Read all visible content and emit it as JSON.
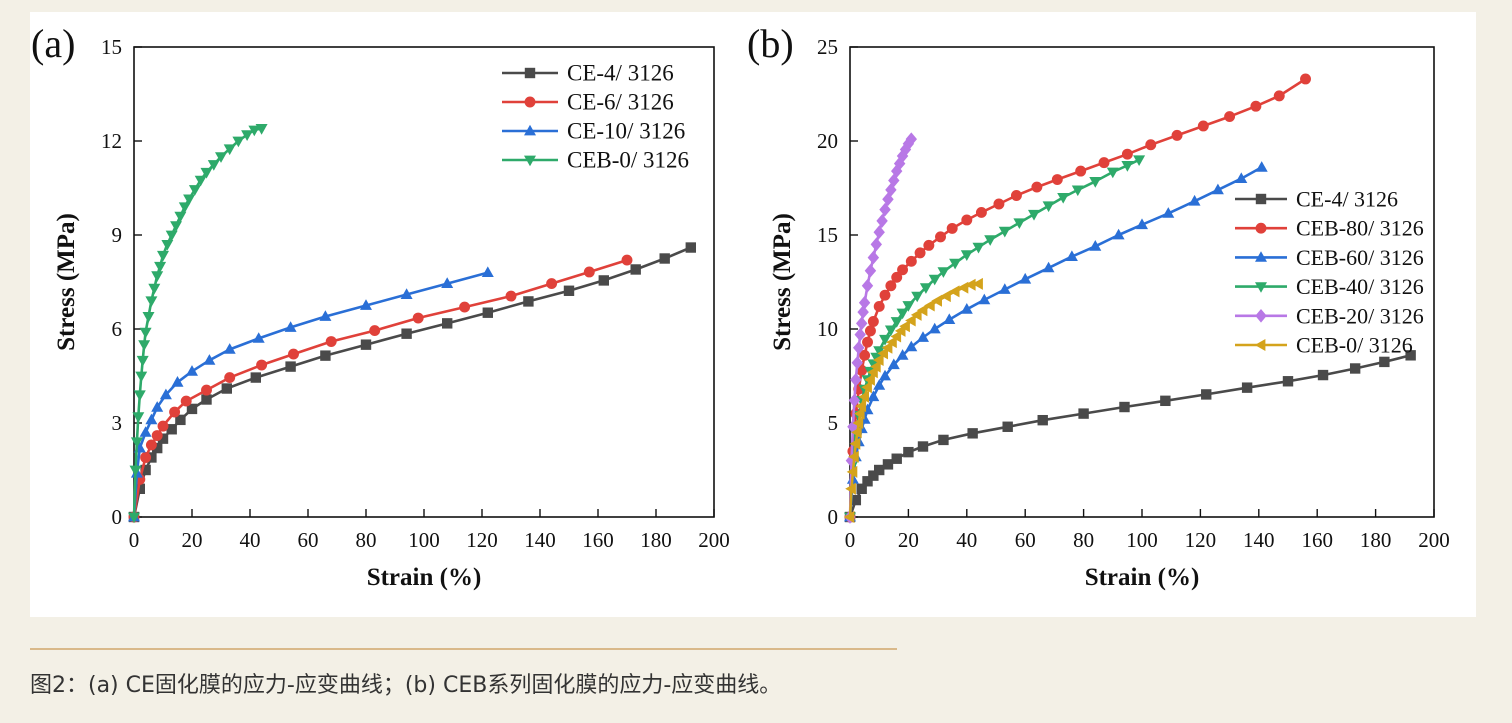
{
  "caption": "图2：(a) CE固化膜的应力-应变曲线；(b) CEB系列固化膜的应力-应变曲线。",
  "chart_data": [
    {
      "type": "line",
      "panel_label": "(a)",
      "xlabel": "Strain (%)",
      "ylabel": "Stress (MPa)",
      "xlim": [
        0,
        200
      ],
      "ylim": [
        0,
        15
      ],
      "xticks": [
        0,
        20,
        40,
        60,
        80,
        100,
        120,
        140,
        160,
        180,
        200
      ],
      "yticks": [
        0,
        3,
        6,
        9,
        12,
        15
      ],
      "legend_position": "top-right",
      "series": [
        {
          "name": "CE-4/ 3126",
          "color": "#4a4a4a",
          "marker": "square",
          "x": [
            0,
            2,
            4,
            6,
            8,
            10,
            13,
            16,
            20,
            25,
            32,
            42,
            54,
            66,
            80,
            94,
            108,
            122,
            136,
            150,
            162,
            173,
            183,
            192
          ],
          "y": [
            0,
            0.9,
            1.5,
            1.9,
            2.2,
            2.5,
            2.8,
            3.1,
            3.45,
            3.75,
            4.1,
            4.45,
            4.8,
            5.15,
            5.5,
            5.85,
            6.18,
            6.52,
            6.88,
            7.22,
            7.55,
            7.9,
            8.25,
            8.6
          ]
        },
        {
          "name": "CE-6/ 3126",
          "color": "#e0413a",
          "marker": "circle",
          "x": [
            0,
            2,
            4,
            6,
            8,
            10,
            14,
            18,
            25,
            33,
            44,
            55,
            68,
            83,
            98,
            114,
            130,
            144,
            157,
            170
          ],
          "y": [
            0,
            1.2,
            1.9,
            2.3,
            2.6,
            2.9,
            3.35,
            3.7,
            4.05,
            4.45,
            4.85,
            5.2,
            5.6,
            5.95,
            6.35,
            6.7,
            7.05,
            7.45,
            7.82,
            8.2
          ]
        },
        {
          "name": "CE-10/ 3126",
          "color": "#2a6fd6",
          "marker": "triangle-up",
          "x": [
            0,
            1,
            2,
            4,
            6,
            8,
            11,
            15,
            20,
            26,
            33,
            43,
            54,
            66,
            80,
            94,
            108,
            122
          ],
          "y": [
            0,
            1.4,
            2.2,
            2.7,
            3.1,
            3.5,
            3.9,
            4.3,
            4.65,
            5.0,
            5.35,
            5.7,
            6.05,
            6.4,
            6.75,
            7.1,
            7.45,
            7.8
          ]
        },
        {
          "name": "CEB-0/ 3126",
          "color": "#2eaa6a",
          "marker": "triangle-down",
          "x": [
            0,
            0.5,
            1,
            1.5,
            2,
            2.5,
            3,
            3.5,
            4,
            5,
            6,
            7,
            8,
            9,
            10,
            11.5,
            13,
            14.5,
            16,
            17.5,
            19,
            21,
            23,
            25,
            27.5,
            30,
            33,
            36,
            39,
            41.5,
            44
          ],
          "y": [
            0,
            1.5,
            2.4,
            3.2,
            3.9,
            4.5,
            5.0,
            5.5,
            5.9,
            6.4,
            6.9,
            7.3,
            7.7,
            8.0,
            8.35,
            8.7,
            9.0,
            9.3,
            9.6,
            9.9,
            10.15,
            10.45,
            10.75,
            11.0,
            11.25,
            11.5,
            11.75,
            12.0,
            12.2,
            12.35,
            12.4
          ]
        }
      ]
    },
    {
      "type": "line",
      "panel_label": "(b)",
      "xlabel": "Strain (%)",
      "ylabel": "Stress (MPa)",
      "xlim": [
        0,
        200
      ],
      "ylim": [
        0,
        25
      ],
      "xticks": [
        0,
        20,
        40,
        60,
        80,
        100,
        120,
        140,
        160,
        180,
        200
      ],
      "yticks": [
        0,
        5,
        10,
        15,
        20,
        25
      ],
      "legend_position": "right",
      "series": [
        {
          "name": "CE-4/ 3126",
          "color": "#4a4a4a",
          "marker": "square",
          "x": [
            0,
            2,
            4,
            6,
            8,
            10,
            13,
            16,
            20,
            25,
            32,
            42,
            54,
            66,
            80,
            94,
            108,
            122,
            136,
            150,
            162,
            173,
            183,
            192
          ],
          "y": [
            0,
            0.9,
            1.5,
            1.9,
            2.2,
            2.5,
            2.8,
            3.1,
            3.45,
            3.75,
            4.1,
            4.45,
            4.8,
            5.15,
            5.5,
            5.85,
            6.18,
            6.52,
            6.88,
            7.22,
            7.55,
            7.9,
            8.25,
            8.6
          ]
        },
        {
          "name": "CEB-80/ 3126",
          "color": "#e0413a",
          "marker": "circle",
          "x": [
            0,
            1,
            2,
            3,
            4,
            5,
            6,
            7,
            8,
            10,
            12,
            14,
            16,
            18,
            21,
            24,
            27,
            31,
            35,
            40,
            45,
            51,
            57,
            64,
            71,
            79,
            87,
            95,
            103,
            112,
            121,
            130,
            139,
            147,
            156
          ],
          "y": [
            0,
            3.5,
            5.5,
            6.8,
            7.8,
            8.6,
            9.3,
            9.9,
            10.4,
            11.2,
            11.8,
            12.3,
            12.75,
            13.15,
            13.6,
            14.05,
            14.45,
            14.9,
            15.35,
            15.8,
            16.2,
            16.65,
            17.1,
            17.55,
            17.95,
            18.4,
            18.85,
            19.3,
            19.8,
            20.3,
            20.8,
            21.3,
            21.85,
            22.4,
            23.3
          ]
        },
        {
          "name": "CEB-60/ 3126",
          "color": "#2a6fd6",
          "marker": "triangle-up",
          "x": [
            0,
            1,
            2,
            3,
            4,
            5,
            6,
            8,
            10,
            12,
            15,
            18,
            21,
            25,
            29,
            34,
            40,
            46,
            53,
            60,
            68,
            76,
            84,
            92,
            100,
            109,
            118,
            126,
            134,
            141
          ],
          "y": [
            0,
            2.0,
            3.2,
            4.0,
            4.7,
            5.2,
            5.7,
            6.4,
            7.0,
            7.5,
            8.1,
            8.6,
            9.05,
            9.55,
            10.0,
            10.5,
            11.05,
            11.55,
            12.1,
            12.65,
            13.25,
            13.85,
            14.4,
            15.0,
            15.55,
            16.15,
            16.8,
            17.4,
            18.0,
            18.6
          ]
        },
        {
          "name": "CEB-40/ 3126",
          "color": "#2eaa6a",
          "marker": "triangle-down",
          "x": [
            0,
            1,
            2,
            3,
            4,
            5,
            6,
            7,
            8,
            9,
            10,
            12,
            14,
            16,
            18,
            20,
            23,
            26,
            29,
            32,
            36,
            40,
            44,
            48,
            53,
            58,
            63,
            68,
            73,
            78,
            84,
            90,
            95,
            99
          ],
          "y": [
            0,
            2.8,
            4.4,
            5.4,
            6.2,
            6.8,
            7.3,
            7.75,
            8.15,
            8.5,
            8.85,
            9.45,
            9.95,
            10.4,
            10.85,
            11.25,
            11.75,
            12.2,
            12.65,
            13.05,
            13.5,
            13.95,
            14.35,
            14.75,
            15.2,
            15.65,
            16.1,
            16.55,
            17.0,
            17.4,
            17.85,
            18.35,
            18.7,
            19.0
          ]
        },
        {
          "name": "CEB-20/ 3126",
          "color": "#b878e6",
          "marker": "diamond",
          "x": [
            0,
            0.5,
            1,
            1.5,
            2,
            2.5,
            3,
            3.5,
            4,
            4.5,
            5,
            6,
            7,
            8,
            9,
            10,
            11,
            12,
            13,
            14,
            15,
            16,
            17,
            18,
            19,
            20,
            21
          ],
          "y": [
            0,
            3.0,
            4.8,
            6.2,
            7.3,
            8.2,
            9.0,
            9.7,
            10.3,
            10.9,
            11.4,
            12.3,
            13.1,
            13.8,
            14.5,
            15.15,
            15.75,
            16.35,
            16.9,
            17.4,
            17.9,
            18.4,
            18.8,
            19.2,
            19.55,
            19.85,
            20.1
          ]
        },
        {
          "name": "CEB-0/ 3126",
          "color": "#d4a31c",
          "marker": "triangle-left",
          "x": [
            0,
            0.5,
            1,
            1.5,
            2,
            2.5,
            3,
            3.5,
            4,
            5,
            6,
            7,
            8,
            9,
            10,
            11.5,
            13,
            14.5,
            16,
            17.5,
            19,
            21,
            23,
            25,
            27.5,
            30,
            33,
            36,
            39,
            41.5,
            44
          ],
          "y": [
            0,
            1.5,
            2.4,
            3.2,
            3.9,
            4.5,
            5.0,
            5.5,
            5.9,
            6.4,
            6.9,
            7.3,
            7.7,
            8.0,
            8.35,
            8.7,
            9.0,
            9.3,
            9.6,
            9.9,
            10.15,
            10.45,
            10.75,
            11.0,
            11.25,
            11.5,
            11.75,
            12.0,
            12.2,
            12.35,
            12.4
          ]
        }
      ]
    }
  ]
}
